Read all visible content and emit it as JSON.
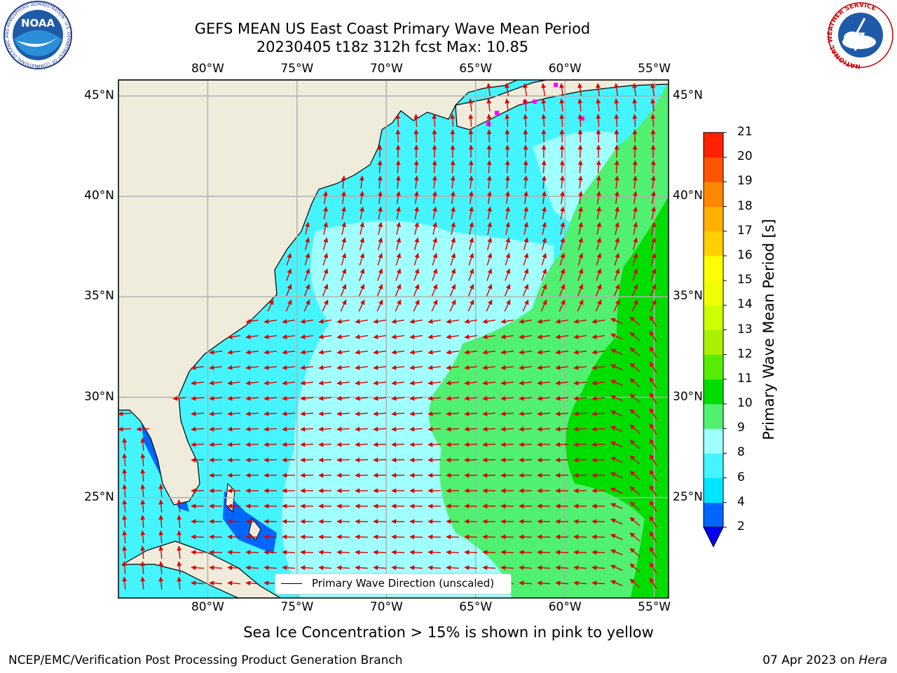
{
  "title": {
    "line1": "GEFS MEAN US East Coast Primary Wave Mean Period",
    "line2": "20230405 t18z 312h fcst   Max: 10.85"
  },
  "logos": {
    "left": {
      "text": "NOAA",
      "ring_text": "NATIONAL OCEANIC AND ATMOSPHERIC ADMINISTRATION · U.S. DEPARTMENT OF COMMERCE"
    },
    "right": {
      "ring_text": "NATIONAL WEATHER SERVICE"
    }
  },
  "map": {
    "lon_labels": [
      "80°W",
      "75°W",
      "70°W",
      "65°W",
      "60°W",
      "55°W"
    ],
    "lat_labels": [
      "45°N",
      "40°N",
      "35°N",
      "30°N",
      "25°N"
    ],
    "lon_values": [
      -80,
      -75,
      -70,
      -65,
      -60,
      -55
    ],
    "lat_values": [
      45,
      40,
      35,
      30,
      25
    ],
    "extent": {
      "lon_min": -85,
      "lon_max": -54.2,
      "lat_min": 20.0,
      "lat_max": 45.8
    },
    "legend_label": "Primary Wave Direction (unscaled)",
    "sea_ice_note": "Sea Ice Concentration > 15% is shown in pink to yellow",
    "colors": {
      "land": "#efecdc",
      "arrow": "#dd0000",
      "grid": "#b0b0b0",
      "sea_ice": "#ff00ff"
    }
  },
  "colorbar": {
    "label": "Primary Wave Mean Period [s]",
    "ticks": [
      "2",
      "4",
      "6",
      "8",
      "9",
      "10",
      "11",
      "12",
      "13",
      "14",
      "15",
      "16",
      "17",
      "18",
      "19",
      "20",
      "21"
    ],
    "colors": [
      "#0066ff",
      "#00e5ff",
      "#44f5ff",
      "#a0ffff",
      "#50f070",
      "#00dd00",
      "#55ee00",
      "#aaf000",
      "#ccff00",
      "#eeff00",
      "#ffff00",
      "#ffd000",
      "#ffb000",
      "#ff8800",
      "#ff5500",
      "#ff2200"
    ],
    "extend_color": "#0000ee"
  },
  "footer": {
    "left": "NCEP/EMC/Verification Post Processing Product Generation Branch",
    "right_date": "07 Apr 2023 on ",
    "right_host": "Hera"
  }
}
